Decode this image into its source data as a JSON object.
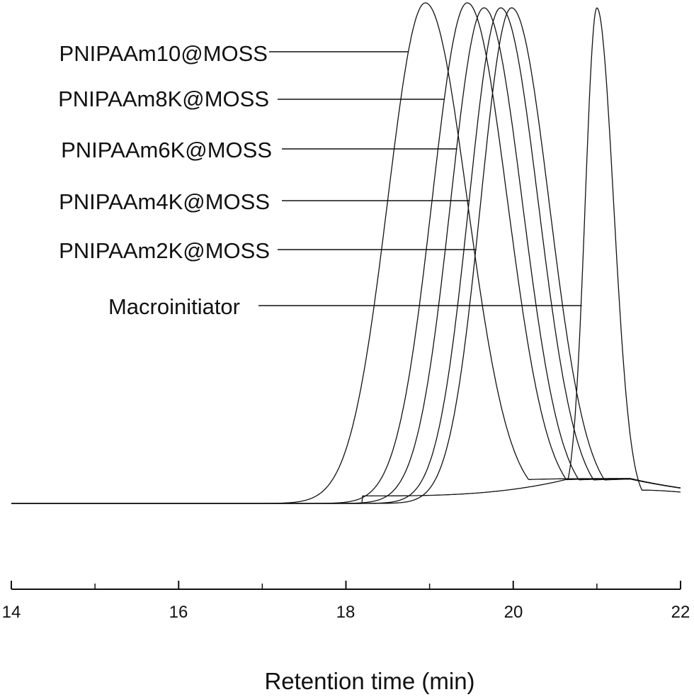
{
  "chart_data": {
    "type": "line",
    "title": "",
    "xlabel": "Retention time (min)",
    "ylabel": "",
    "xlim": [
      14,
      22
    ],
    "ylim": [
      0,
      1
    ],
    "grid": false,
    "legend": "labels with leader lines, upper-left",
    "x_ticks": [
      "14",
      "16",
      "18",
      "20",
      "22"
    ],
    "series": [
      {
        "name": "PNIPAAm10@MOSS",
        "peak_x": 18.95,
        "peak_y": 1.0,
        "sigma_left": 0.45,
        "sigma_right": 0.5,
        "tail_y": 0.05
      },
      {
        "name": "PNIPAAm8K@MOSS",
        "peak_x": 19.45,
        "peak_y": 1.0,
        "sigma_left": 0.42,
        "sigma_right": 0.48,
        "tail_y": 0.05
      },
      {
        "name": "PNIPAAm6K@MOSS",
        "peak_x": 19.65,
        "peak_y": 0.99,
        "sigma_left": 0.4,
        "sigma_right": 0.46,
        "tail_y": 0.05
      },
      {
        "name": "PNIPAAm4K@MOSS",
        "peak_x": 19.85,
        "peak_y": 0.99,
        "sigma_left": 0.38,
        "sigma_right": 0.45,
        "tail_y": 0.05
      },
      {
        "name": "PNIPAAm2K@MOSS",
        "peak_x": 19.98,
        "peak_y": 0.99,
        "sigma_left": 0.37,
        "sigma_right": 0.45,
        "tail_y": 0.05
      },
      {
        "name": "Macroinitiator",
        "peak_x": 21.0,
        "peak_y": 0.99,
        "sigma_left": 0.14,
        "sigma_right": 0.2,
        "tail_y": 0.04
      }
    ]
  }
}
